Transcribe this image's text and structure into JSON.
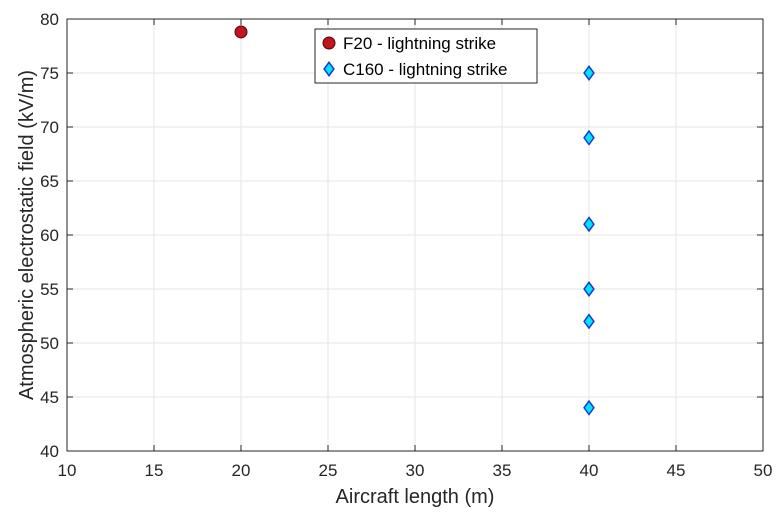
{
  "chart_data": {
    "type": "scatter",
    "title": "",
    "xlabel": "Aircraft length (m)",
    "ylabel": "Atmospheric electrostatic field (kV/m)",
    "xlim": [
      10,
      50
    ],
    "ylim": [
      40,
      80
    ],
    "xticks": [
      "10",
      "15",
      "20",
      "25",
      "30",
      "35",
      "40",
      "45",
      "50"
    ],
    "yticks": [
      "40",
      "45",
      "50",
      "55",
      "60",
      "65",
      "70",
      "75",
      "80"
    ],
    "grid": true,
    "legend_position": "top-center",
    "series": [
      {
        "name": "F20 - lightning strike",
        "marker": "circle",
        "color": "#c0141e",
        "edge_color": "#4a0b0b",
        "points": [
          {
            "x": 20,
            "y": 78.8
          }
        ]
      },
      {
        "name": "C160 - lightning strike",
        "marker": "diamond",
        "color": "#00e5ff",
        "edge_color": "#1a3cc8",
        "points": [
          {
            "x": 40,
            "y": 75
          },
          {
            "x": 40,
            "y": 69
          },
          {
            "x": 40,
            "y": 61
          },
          {
            "x": 40,
            "y": 55
          },
          {
            "x": 40,
            "y": 52
          },
          {
            "x": 40,
            "y": 44
          }
        ]
      }
    ]
  }
}
